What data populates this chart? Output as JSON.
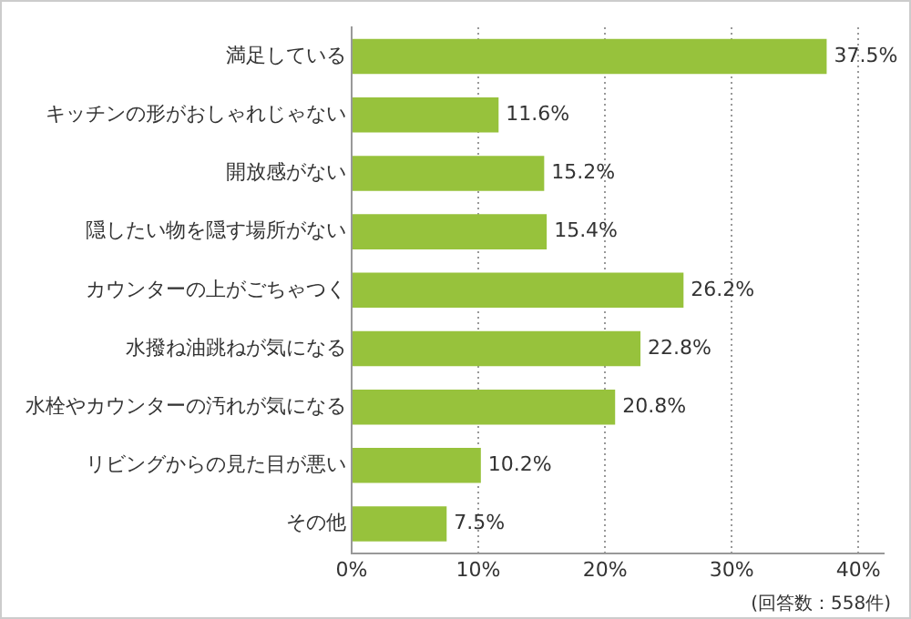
{
  "chart_data": {
    "type": "bar",
    "orientation": "horizontal",
    "categories": [
      "満足している",
      "キッチンの形がおしゃれじゃない",
      "開放感がない",
      "隠したい物を隠す場所がない",
      "カウンターの上がごちゃつく",
      "水撥ね油跳ねが気になる",
      "水栓やカウンターの汚れが気になる",
      "リビングからの見た目が悪い",
      "その他"
    ],
    "values": [
      37.5,
      11.6,
      15.2,
      15.4,
      26.2,
      22.8,
      20.8,
      10.2,
      7.5
    ],
    "value_labels": [
      "37.5%",
      "11.6%",
      "15.2%",
      "15.4%",
      "26.2%",
      "22.8%",
      "20.8%",
      "10.2%",
      "7.5%"
    ],
    "color": "#97c23c",
    "xlim": [
      0,
      42
    ],
    "xticks": [
      {
        "value": 0,
        "label": "0%"
      },
      {
        "value": 10,
        "label": "10%"
      },
      {
        "value": 20,
        "label": "20%"
      },
      {
        "value": 30,
        "label": "30%"
      },
      {
        "value": 40,
        "label": "40%"
      }
    ],
    "grid": "x",
    "annotations": [
      "(回答数：558件)"
    ]
  }
}
